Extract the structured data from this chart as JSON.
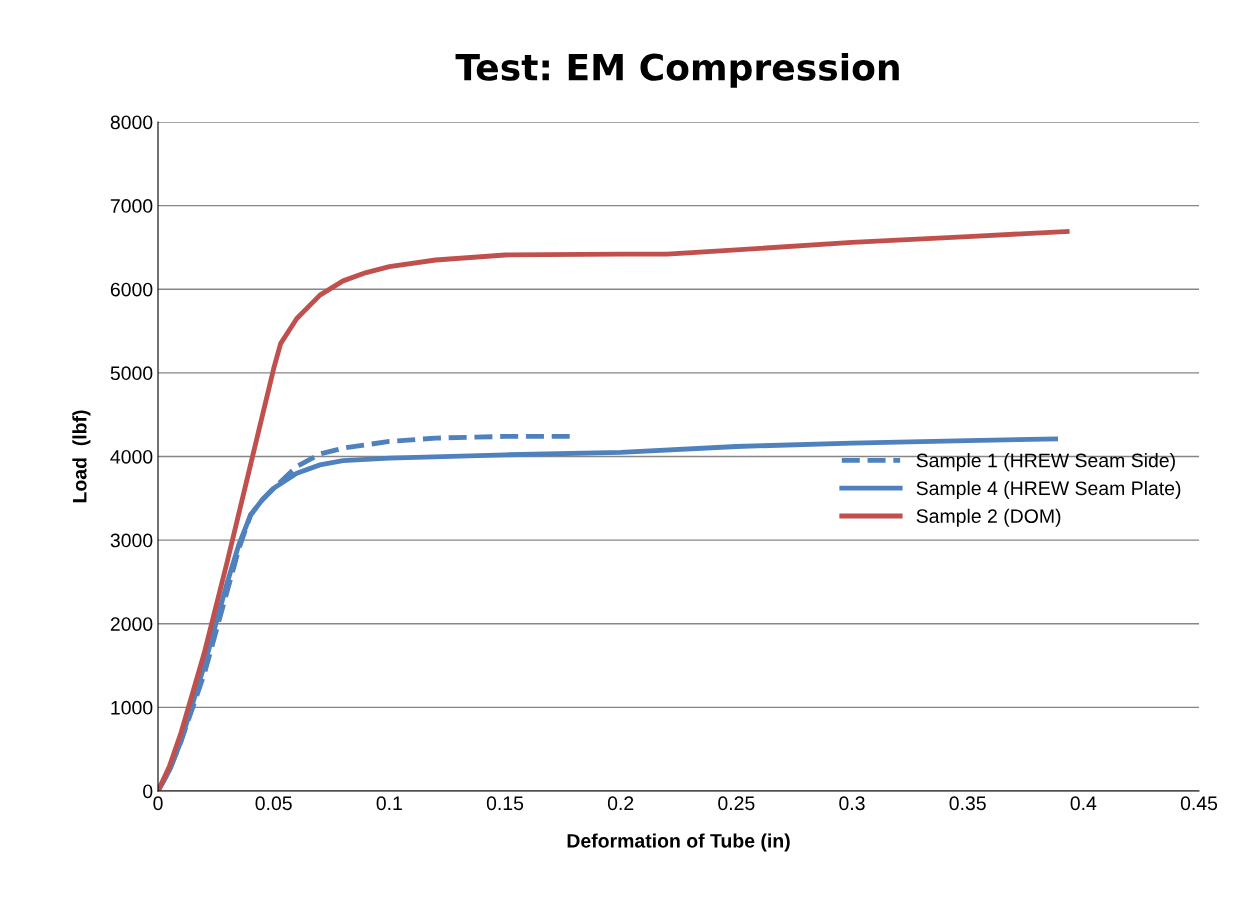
{
  "chart_data": {
    "type": "line",
    "title": "Test: EM Compression",
    "xlabel": "Deformation of Tube (in)",
    "ylabel": "Load  (lbf)",
    "xlim": [
      0,
      0.45
    ],
    "xticks": [
      0,
      0.05,
      0.1,
      0.15,
      0.2,
      0.25,
      0.3,
      0.35,
      0.4,
      0.45
    ],
    "ylim": [
      0,
      8000
    ],
    "yticks": [
      0,
      1000,
      2000,
      3000,
      4000,
      5000,
      6000,
      7000,
      8000
    ],
    "grid": "y",
    "legend": "right",
    "marker": "none",
    "series": [
      {
        "name": "Sample 1 (HREW Seam Side)",
        "color": "#4f81bd",
        "line_style": "dashed",
        "x": [
          0,
          0.005,
          0.01,
          0.015,
          0.02,
          0.025,
          0.03,
          0.035,
          0.04,
          0.045,
          0.05,
          0.06,
          0.07,
          0.08,
          0.1,
          0.12,
          0.15,
          0.18
        ],
        "values": [
          0,
          250,
          600,
          1000,
          1400,
          1900,
          2400,
          2900,
          3300,
          3480,
          3620,
          3880,
          4030,
          4100,
          4180,
          4220,
          4240,
          4240
        ]
      },
      {
        "name": "Sample 4 (HREW Seam Plate)",
        "color": "#4f81bd",
        "line_style": "solid",
        "x": [
          0,
          0.005,
          0.01,
          0.015,
          0.02,
          0.025,
          0.03,
          0.035,
          0.04,
          0.045,
          0.05,
          0.06,
          0.07,
          0.08,
          0.1,
          0.15,
          0.2,
          0.25,
          0.3,
          0.35,
          0.388
        ],
        "values": [
          0,
          250,
          600,
          1050,
          1500,
          2000,
          2500,
          2950,
          3300,
          3480,
          3620,
          3800,
          3900,
          3950,
          3980,
          4020,
          4050,
          4120,
          4160,
          4190,
          4210
        ]
      },
      {
        "name": "Sample 2 (DOM)",
        "color": "#c0504d",
        "line_style": "solid",
        "x": [
          0,
          0.005,
          0.01,
          0.02,
          0.03,
          0.04,
          0.05,
          0.053,
          0.06,
          0.07,
          0.08,
          0.09,
          0.1,
          0.12,
          0.15,
          0.2,
          0.22,
          0.25,
          0.3,
          0.35,
          0.393
        ],
        "values": [
          0,
          300,
          700,
          1650,
          2750,
          3900,
          5050,
          5350,
          5650,
          5930,
          6100,
          6200,
          6270,
          6350,
          6410,
          6420,
          6420,
          6470,
          6560,
          6630,
          6690
        ]
      }
    ]
  }
}
